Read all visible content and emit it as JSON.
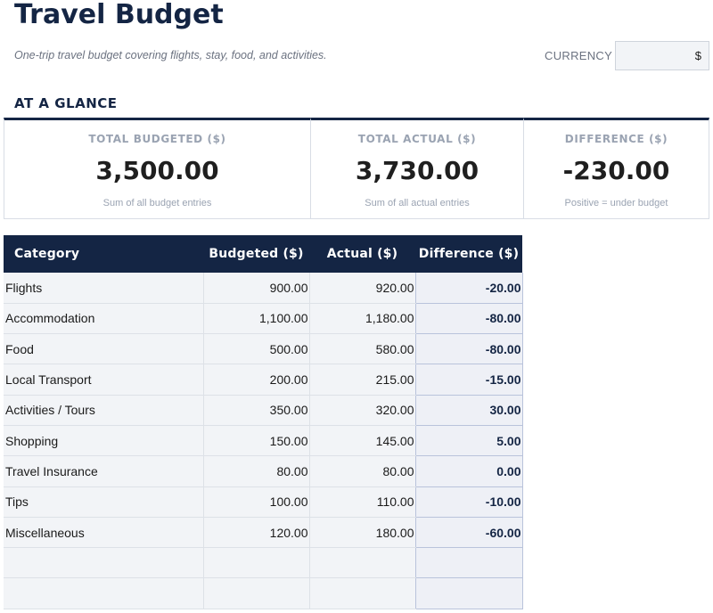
{
  "header": {
    "title": "Travel Budget",
    "subtitle": "One-trip travel budget covering flights, stay, food, and activities.",
    "currency_label": "CURRENCY",
    "currency_value": "$"
  },
  "glance": {
    "heading": "AT A GLANCE",
    "total_budgeted": {
      "label": "TOTAL BUDGETED ($)",
      "value": "3,500.00",
      "note": "Sum of all budget entries"
    },
    "total_actual": {
      "label": "TOTAL ACTUAL ($)",
      "value": "3,730.00",
      "note": "Sum of all actual entries"
    },
    "difference": {
      "label": "DIFFERENCE ($)",
      "value": "-230.00",
      "note": "Positive = under budget"
    }
  },
  "table": {
    "headers": [
      "Category",
      "Budgeted ($)",
      "Actual ($)",
      "Difference ($)"
    ],
    "rows": [
      [
        "Flights",
        "900.00",
        "920.00",
        "-20.00"
      ],
      [
        "Accommodation",
        "1,100.00",
        "1,180.00",
        "-80.00"
      ],
      [
        "Food",
        "500.00",
        "580.00",
        "-80.00"
      ],
      [
        "Local Transport",
        "200.00",
        "215.00",
        "-15.00"
      ],
      [
        "Activities / Tours",
        "350.00",
        "320.00",
        "30.00"
      ],
      [
        "Shopping",
        "150.00",
        "145.00",
        "5.00"
      ],
      [
        "Travel Insurance",
        "80.00",
        "80.00",
        "0.00"
      ],
      [
        "Tips",
        "100.00",
        "110.00",
        "-10.00"
      ],
      [
        "Miscellaneous",
        "120.00",
        "180.00",
        "-60.00"
      ],
      [
        "",
        "",
        "",
        ""
      ],
      [
        "",
        "",
        "",
        ""
      ]
    ]
  }
}
